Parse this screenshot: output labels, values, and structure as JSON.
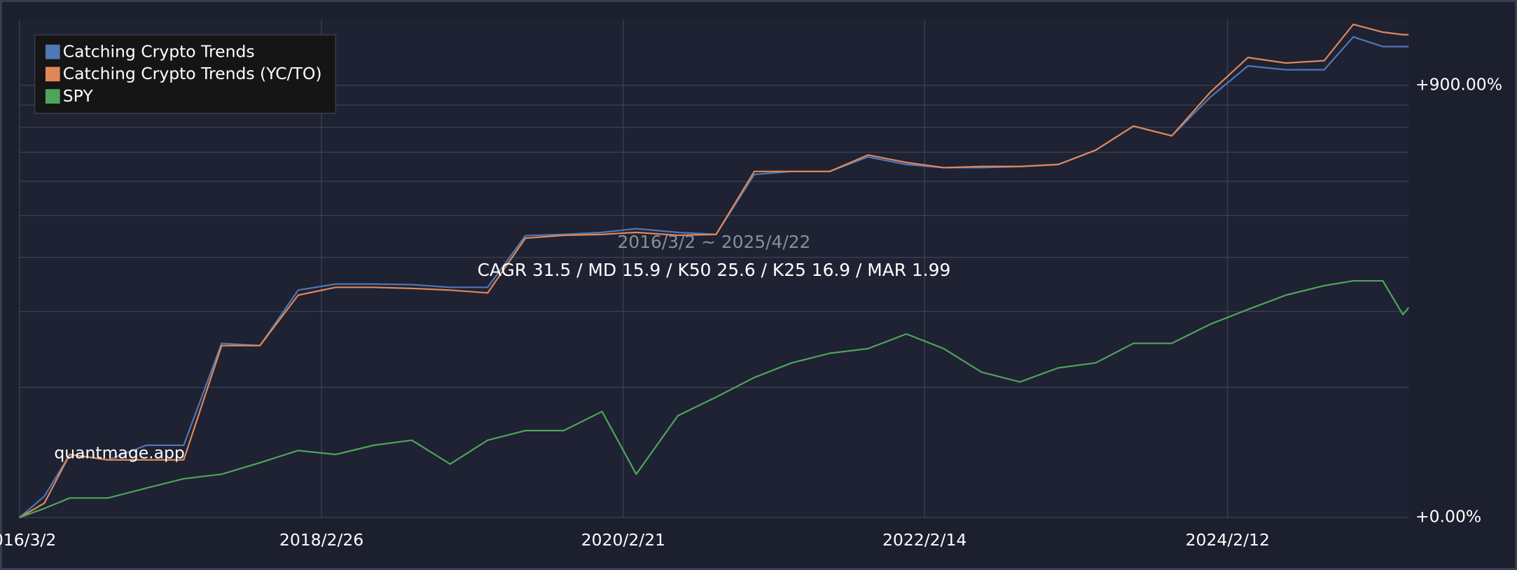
{
  "chart_data": {
    "type": "line",
    "subtitle": "2016/3/2 ~ 2025/4/22",
    "title": "CAGR 31.5 / MD 15.9 / K50 25.6 / K25 16.9 / MAR 1.99",
    "watermark": "quantmage.app",
    "x": [
      "2016-03-02",
      "2016-05-01",
      "2016-07-01",
      "2016-10-01",
      "2017-01-01",
      "2017-04-01",
      "2017-07-01",
      "2017-10-01",
      "2018-01-01",
      "2018-04-01",
      "2018-07-01",
      "2018-10-01",
      "2019-01-01",
      "2019-04-01",
      "2019-07-01",
      "2019-10-01",
      "2020-01-01",
      "2020-03-23",
      "2020-07-01",
      "2020-10-01",
      "2021-01-01",
      "2021-04-01",
      "2021-07-01",
      "2021-10-01",
      "2022-01-01",
      "2022-04-01",
      "2022-07-01",
      "2022-10-01",
      "2023-01-01",
      "2023-04-01",
      "2023-07-01",
      "2023-10-01",
      "2024-01-01",
      "2024-04-01",
      "2024-07-01",
      "2024-10-01",
      "2024-12-10",
      "2025-02-19",
      "2025-04-08",
      "2025-04-22"
    ],
    "series": [
      {
        "name": "Catching Crypto Trends",
        "color": "#4f78b5",
        "values": [
          0,
          12,
          40,
          36,
          47,
          47,
          153,
          150,
          236,
          247,
          247,
          246,
          241,
          241,
          349,
          352,
          357,
          366,
          357,
          352,
          522,
          532,
          532,
          583,
          556,
          545,
          545,
          549,
          556,
          608,
          705,
          664,
          838,
          1009,
          986,
          986,
          1194,
          1129,
          1129,
          1129
        ]
      },
      {
        "name": "Catching Crypto Trends (YC/TO)",
        "color": "#e0875a",
        "values": [
          0,
          8,
          40,
          36,
          36,
          36,
          150,
          150,
          227,
          241,
          241,
          239,
          236,
          231,
          343,
          350,
          352,
          357,
          350,
          352,
          532,
          532,
          532,
          590,
          563,
          545,
          549,
          549,
          556,
          608,
          705,
          664,
          863,
          1060,
          1026,
          1040,
          1283,
          1227,
          1210,
          1210
        ]
      },
      {
        "name": "SPY",
        "color": "#4ea45c",
        "values": [
          0,
          5,
          11,
          11,
          17,
          23,
          26,
          34,
          43,
          40,
          47,
          51,
          33,
          51,
          59,
          59,
          76,
          26,
          72,
          90,
          111,
          128,
          140,
          146,
          166,
          146,
          117,
          106,
          122,
          128,
          153,
          153,
          180,
          203,
          227,
          244,
          253,
          253,
          195,
          206
        ]
      }
    ],
    "xlim": [
      "2016-03-02",
      "2025-04-22"
    ],
    "xticks": [
      {
        "value": "2016-03-02",
        "label": "2016/3/2"
      },
      {
        "value": "2018-02-26",
        "label": "2018/2/26"
      },
      {
        "value": "2020-02-21",
        "label": "2020/2/21"
      },
      {
        "value": "2022-02-14",
        "label": "2022/2/14"
      },
      {
        "value": "2024-02-12",
        "label": "2024/2/12"
      }
    ],
    "ylim": [
      0,
      1320
    ],
    "yticks": [
      {
        "value": 0,
        "label": "+0.00%"
      },
      {
        "value": 900,
        "label": "+900.00%"
      }
    ],
    "minor_gridlines": [
      100,
      200,
      300,
      400,
      500,
      600,
      700,
      800
    ],
    "log_growth_scale": true,
    "grid": true,
    "legend": "top-left"
  }
}
